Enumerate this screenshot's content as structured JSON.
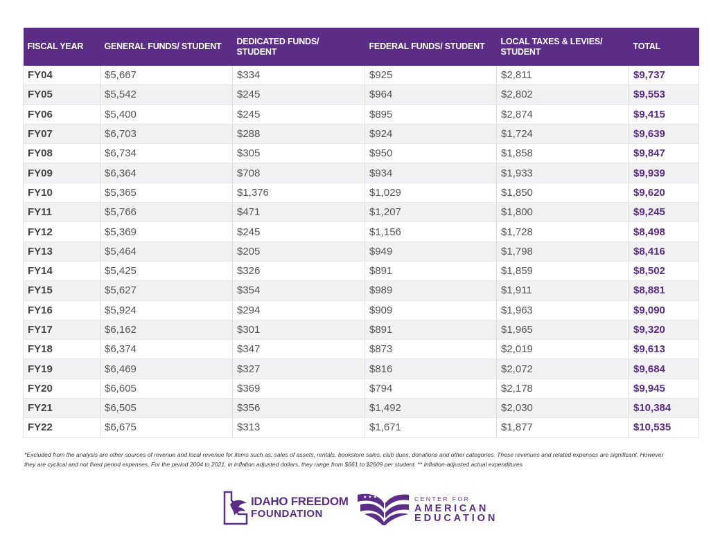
{
  "table": {
    "headers": [
      "FISCAL YEAR",
      "GENERAL FUNDS/ STUDENT",
      "DEDICATED FUNDS/ STUDENT",
      "FEDERAL FUNDS/ STUDENT",
      "LOCAL TAXES & LEVIES/ STUDENT",
      "TOTAL"
    ],
    "rows": [
      [
        "FY04",
        "$5,667",
        "$334",
        "$925",
        "$2,811",
        "$9,737"
      ],
      [
        "FY05",
        "$5,542",
        "$245",
        "$964",
        "$2,802",
        "$9,553"
      ],
      [
        "FY06",
        "$5,400",
        "$245",
        "$895",
        "$2,874",
        "$9,415"
      ],
      [
        "FY07",
        "$6,703",
        "$288",
        "$924",
        "$1,724",
        "$9,639"
      ],
      [
        "FY08",
        "$6,734",
        "$305",
        "$950",
        "$1,858",
        "$9,847"
      ],
      [
        "FY09",
        "$6,364",
        "$708",
        "$934",
        "$1,933",
        "$9,939"
      ],
      [
        "FY10",
        "$5,365",
        "$1,376",
        "$1,029",
        "$1,850",
        "$9,620"
      ],
      [
        "FY11",
        "$5,766",
        "$471",
        "$1,207",
        "$1,800",
        "$9,245"
      ],
      [
        "FY12",
        "$5,369",
        "$245",
        "$1,156",
        "$1,728",
        "$8,498"
      ],
      [
        "FY13",
        "$5,464",
        "$205",
        "$949",
        "$1,798",
        "$8,416"
      ],
      [
        "FY14",
        "$5,425",
        "$326",
        "$891",
        "$1,859",
        "$8,502"
      ],
      [
        "FY15",
        "$5,627",
        "$354",
        "$989",
        "$1,911",
        "$8,881"
      ],
      [
        "FY16",
        "$5,924",
        "$294",
        "$909",
        "$1,963",
        "$9,090"
      ],
      [
        "FY17",
        "$6,162",
        "$301",
        "$891",
        "$1,965",
        "$9,320"
      ],
      [
        "FY18",
        "$6,374",
        "$347",
        "$873",
        "$2,019",
        "$9,613"
      ],
      [
        "FY19",
        "$6,469",
        "$327",
        "$816",
        "$2,072",
        "$9,684"
      ],
      [
        "FY20",
        "$6,605",
        "$369",
        "$794",
        "$2,178",
        "$9,945"
      ],
      [
        "FY21",
        "$6,505",
        "$356",
        "$1,492",
        "$2,030",
        "$10,384"
      ],
      [
        "FY22",
        "$6,675",
        "$313",
        "$1,671",
        "$1,877",
        "$10,535"
      ]
    ]
  },
  "footnote": "*Excluded from the analysis are other sources of revenue and local revenue for items such as: sales of assets, rentals, bookstore sales, club dues, donations and other categories. These revenues and related expenses are significant. However they are cyclical and not fixed period expenses. For the period 2004 to 2021, in inflation adjusted dollars, they range from $661 to $2609 per student. ** Inflation-adjusted actual expenditures",
  "logos": {
    "ifp": {
      "line1": "IDAHO FREEDOM",
      "line2": "FOUNDATION",
      "icon": "idaho-eagle-icon"
    },
    "cae": {
      "line1": "CENTER FOR",
      "line2": "AMERICAN",
      "line3": "EDUCATION",
      "icon": "flag-book-icon"
    }
  },
  "colors": {
    "header_bg": "#5b2d86",
    "total_text": "#5b2d86",
    "stripe": "#f1f1f3"
  }
}
